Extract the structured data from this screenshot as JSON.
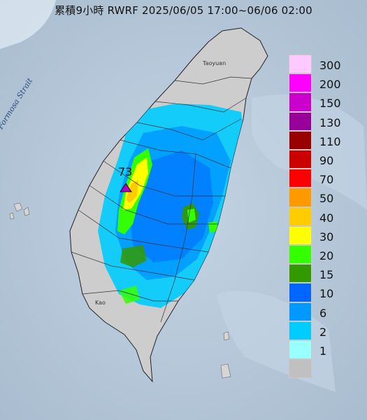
{
  "header": {
    "title": "累積9小時 RWRF 2025/06/05 17:00~06/06 02:00"
  },
  "map": {
    "sea_label": "Formosa Strait",
    "places": [
      "Taoyuan",
      "Kao"
    ],
    "max_value": "73",
    "colors": {
      "sea": "#b7c9d9",
      "land": "#cdcdcd",
      "marker": "#b000c8"
    }
  },
  "legend": {
    "items": [
      {
        "label": "300",
        "color": "#ffc8ff"
      },
      {
        "label": "200",
        "color": "#ff00ff"
      },
      {
        "label": "150",
        "color": "#cc00cc"
      },
      {
        "label": "130",
        "color": "#990099"
      },
      {
        "label": "110",
        "color": "#990000"
      },
      {
        "label": "90",
        "color": "#cc0000"
      },
      {
        "label": "70",
        "color": "#ff0000"
      },
      {
        "label": "50",
        "color": "#ff9900"
      },
      {
        "label": "40",
        "color": "#ffcc00"
      },
      {
        "label": "30",
        "color": "#ffff00"
      },
      {
        "label": "20",
        "color": "#33ff00"
      },
      {
        "label": "15",
        "color": "#339900"
      },
      {
        "label": "10",
        "color": "#0066ff"
      },
      {
        "label": "6",
        "color": "#0099ff"
      },
      {
        "label": "2",
        "color": "#00ccff"
      },
      {
        "label": "1",
        "color": "#99ffff"
      },
      {
        "label": "",
        "color": "#c0c0c0"
      }
    ]
  }
}
